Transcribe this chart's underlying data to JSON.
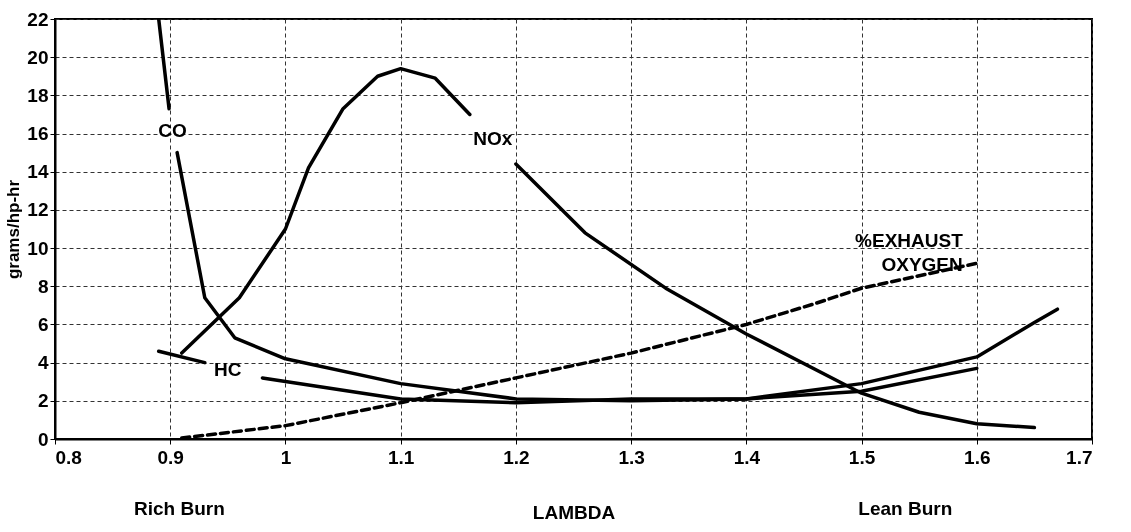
{
  "chart_data": {
    "type": "line",
    "xlabel": "LAMBDA",
    "ylabel": "grams/hp-hr",
    "xlim": [
      0.8,
      1.7
    ],
    "xticks": [
      0.8,
      0.9,
      1,
      1.1,
      1.2,
      1.3,
      1.4,
      1.5,
      1.6,
      1.7
    ],
    "ylim": [
      0,
      22
    ],
    "yticks": [
      0,
      2,
      4,
      6,
      8,
      10,
      12,
      14,
      16,
      18,
      20,
      22
    ],
    "grid": true,
    "annotations": [
      "Rich Burn",
      "Lean Burn"
    ],
    "series": [
      {
        "name": "CO",
        "color": "#000000",
        "x": [
          0.89,
          0.899,
          0.902,
          0.906,
          0.93,
          0.956,
          1.0,
          1.1,
          1.2,
          1.3,
          1.4,
          1.5,
          1.6,
          1.65,
          1.67
        ],
        "values": [
          22,
          17.3,
          null,
          15,
          7.4,
          5.3,
          4.2,
          2.9,
          2.1,
          2.0,
          2.1,
          2.9,
          4.3,
          6.1,
          6.8
        ]
      },
      {
        "name": "NOx",
        "color": "#000000",
        "x": [
          0.91,
          0.96,
          1.0,
          1.02,
          1.05,
          1.08,
          1.1,
          1.13,
          1.16,
          1.18,
          1.2,
          1.26,
          1.33,
          1.4,
          1.5,
          1.55,
          1.6,
          1.65
        ],
        "values": [
          4.5,
          7.4,
          11,
          14.2,
          17.3,
          19,
          19.4,
          18.9,
          17,
          null,
          14.4,
          10.8,
          7.9,
          5.5,
          2.4,
          1.4,
          0.8,
          0.6
        ]
      },
      {
        "name": "HC",
        "color": "#000000",
        "x": [
          0.89,
          0.93,
          0.95,
          0.98,
          1.1,
          1.2,
          1.3,
          1.4,
          1.5,
          1.6
        ],
        "values": [
          4.6,
          4.0,
          null,
          3.2,
          2.1,
          1.9,
          2.1,
          2.1,
          2.5,
          3.7
        ]
      },
      {
        "name": "%EXHAUST OXYGEN",
        "color": "#000000",
        "line_style": "dashed",
        "x": [
          0.91,
          1.0,
          1.1,
          1.2,
          1.3,
          1.4,
          1.46,
          1.5,
          1.6
        ],
        "values": [
          0.05,
          0.7,
          1.9,
          3.2,
          4.5,
          6.0,
          7.1,
          7.9,
          9.2
        ]
      }
    ]
  }
}
